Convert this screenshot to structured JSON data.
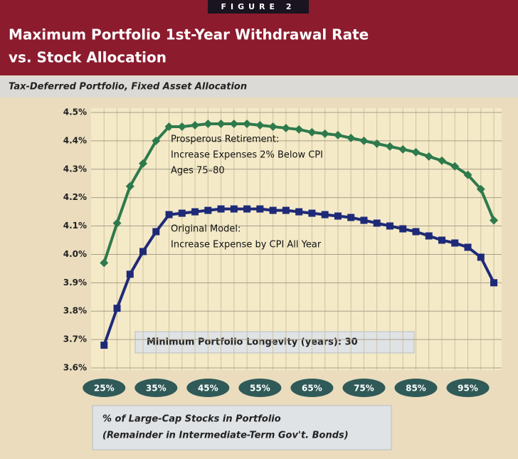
{
  "figure_label": "FIGURE 2",
  "chart_data": {
    "type": "line",
    "title": [
      "Maximum Portfolio 1st-Year Withdrawal Rate",
      "vs. Stock Allocation"
    ],
    "subtitle": "Tax-Deferred Portfolio, Fixed Asset Allocation",
    "xlabel": [
      "% of Large-Cap Stocks in Portfolio",
      "(Remainder in Intermediate-Term Gov't. Bonds)"
    ],
    "annotation": "Minimum Portfolio Longevity (years): 30",
    "x": [
      25,
      27.5,
      30,
      32.5,
      35,
      37.5,
      40,
      42.5,
      45,
      47.5,
      50,
      52.5,
      55,
      57.5,
      60,
      62.5,
      65,
      67.5,
      70,
      72.5,
      75,
      77.5,
      80,
      82.5,
      85,
      87.5,
      90,
      92.5,
      95,
      97.5,
      100
    ],
    "series": [
      {
        "label_lines": [
          "Prosperous Retirement:",
          "Increase Expenses 2% Below CPI",
          "Ages 75–80"
        ],
        "color": "#2e7a4c",
        "marker": "diamond",
        "values": [
          3.97,
          4.11,
          4.24,
          4.32,
          4.4,
          4.45,
          4.45,
          4.455,
          4.46,
          4.46,
          4.46,
          4.46,
          4.455,
          4.45,
          4.445,
          4.44,
          4.43,
          4.425,
          4.42,
          4.41,
          4.4,
          4.39,
          4.38,
          4.37,
          4.36,
          4.345,
          4.33,
          4.31,
          4.28,
          4.23,
          4.12
        ]
      },
      {
        "label_lines": [
          "Original Model:",
          "Increase Expense by CPI All Year"
        ],
        "color": "#1e2a78",
        "marker": "square",
        "values": [
          3.68,
          3.81,
          3.93,
          4.01,
          4.08,
          4.14,
          4.145,
          4.15,
          4.155,
          4.16,
          4.16,
          4.16,
          4.16,
          4.155,
          4.155,
          4.15,
          4.145,
          4.14,
          4.135,
          4.13,
          4.12,
          4.11,
          4.1,
          4.09,
          4.08,
          4.065,
          4.05,
          4.04,
          4.025,
          3.99,
          3.9
        ]
      }
    ],
    "xlim": [
      22.5,
      101.5
    ],
    "ylim": [
      3.6,
      4.5
    ],
    "xticks": [
      {
        "value": 25,
        "label": "25%"
      },
      {
        "value": 35,
        "label": "35%"
      },
      {
        "value": 45,
        "label": "45%"
      },
      {
        "value": 55,
        "label": "55%"
      },
      {
        "value": 65,
        "label": "65%"
      },
      {
        "value": 75,
        "label": "75%"
      },
      {
        "value": 85,
        "label": "85%"
      },
      {
        "value": 95,
        "label": "95%"
      }
    ],
    "yticks": [
      {
        "value": 3.6,
        "label": "3.6%"
      },
      {
        "value": 3.7,
        "label": "3.7%"
      },
      {
        "value": 3.8,
        "label": "3.8%"
      },
      {
        "value": 3.9,
        "label": "3.9%"
      },
      {
        "value": 4.0,
        "label": "4.0%"
      },
      {
        "value": 4.1,
        "label": "4.1%"
      },
      {
        "value": 4.2,
        "label": "4.2%"
      },
      {
        "value": 4.3,
        "label": "4.3%"
      },
      {
        "value": 4.4,
        "label": "4.4%"
      },
      {
        "value": 4.5,
        "label": "4.5%"
      }
    ],
    "grid": true
  }
}
